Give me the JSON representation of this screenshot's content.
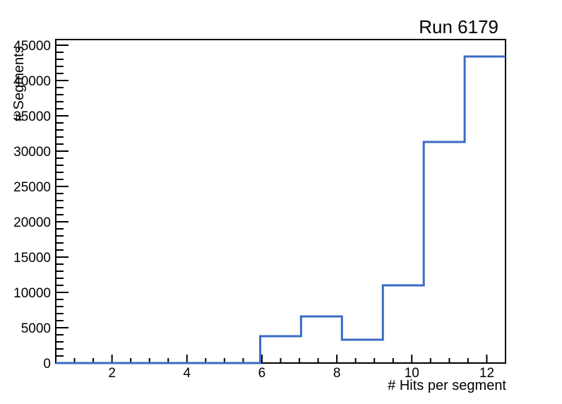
{
  "chart_data": {
    "type": "bar",
    "subtype": "step-histogram-outline",
    "title": "Run 6179",
    "xlabel": "# Hits per segment",
    "ylabel": "# Segments",
    "xlim": [
      0.5,
      12.5
    ],
    "ylim": [
      0,
      45800
    ],
    "bin_edges": [
      0.5,
      1.591,
      2.682,
      3.773,
      4.864,
      5.955,
      7.045,
      8.136,
      9.227,
      10.318,
      11.409,
      12.5
    ],
    "counts": [
      0,
      0,
      0,
      0,
      0,
      3800,
      6600,
      3300,
      11000,
      31300,
      43400
    ],
    "x_major_ticks": [
      2,
      4,
      6,
      8,
      10,
      12
    ],
    "x_major_tick_labels": [
      "2",
      "4",
      "6",
      "8",
      "10",
      "12"
    ],
    "x_minor_step": 0.5,
    "y_major_ticks": [
      0,
      5000,
      10000,
      15000,
      20000,
      25000,
      30000,
      35000,
      40000,
      45000
    ],
    "y_major_tick_labels": [
      "0",
      "5000",
      "10000",
      "15000",
      "20000",
      "25000",
      "30000",
      "35000",
      "40000",
      "45000"
    ],
    "y_minor_step": 1000,
    "grid": false,
    "legend": null,
    "line_color": "#3a6bc6",
    "frame_color": "#000000",
    "background_color": "#ffffff"
  }
}
